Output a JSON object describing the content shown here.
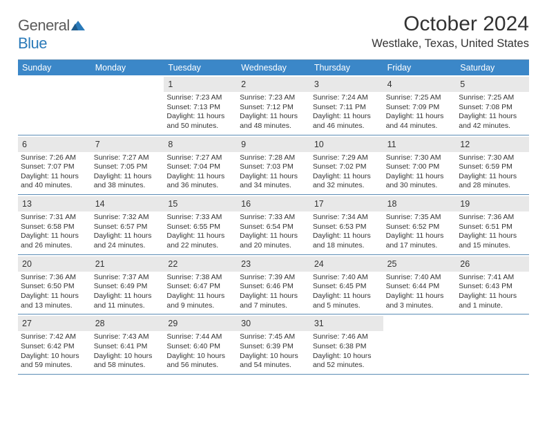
{
  "brand": {
    "name_part1": "General",
    "name_part2": "Blue"
  },
  "title": "October 2024",
  "location": "Westlake, Texas, United States",
  "colors": {
    "header_bg": "#3b87c8",
    "rule": "#5a8bb5",
    "daynum_bg": "#e8e8e8",
    "text": "#333333",
    "brand_gray": "#5a5a5a",
    "brand_blue": "#2a7ab9",
    "white": "#ffffff"
  },
  "day_names": [
    "Sunday",
    "Monday",
    "Tuesday",
    "Wednesday",
    "Thursday",
    "Friday",
    "Saturday"
  ],
  "weeks": [
    [
      null,
      null,
      {
        "d": "1",
        "sr": "7:23 AM",
        "ss": "7:13 PM",
        "dl": "11 hours and 50 minutes."
      },
      {
        "d": "2",
        "sr": "7:23 AM",
        "ss": "7:12 PM",
        "dl": "11 hours and 48 minutes."
      },
      {
        "d": "3",
        "sr": "7:24 AM",
        "ss": "7:11 PM",
        "dl": "11 hours and 46 minutes."
      },
      {
        "d": "4",
        "sr": "7:25 AM",
        "ss": "7:09 PM",
        "dl": "11 hours and 44 minutes."
      },
      {
        "d": "5",
        "sr": "7:25 AM",
        "ss": "7:08 PM",
        "dl": "11 hours and 42 minutes."
      }
    ],
    [
      {
        "d": "6",
        "sr": "7:26 AM",
        "ss": "7:07 PM",
        "dl": "11 hours and 40 minutes."
      },
      {
        "d": "7",
        "sr": "7:27 AM",
        "ss": "7:05 PM",
        "dl": "11 hours and 38 minutes."
      },
      {
        "d": "8",
        "sr": "7:27 AM",
        "ss": "7:04 PM",
        "dl": "11 hours and 36 minutes."
      },
      {
        "d": "9",
        "sr": "7:28 AM",
        "ss": "7:03 PM",
        "dl": "11 hours and 34 minutes."
      },
      {
        "d": "10",
        "sr": "7:29 AM",
        "ss": "7:02 PM",
        "dl": "11 hours and 32 minutes."
      },
      {
        "d": "11",
        "sr": "7:30 AM",
        "ss": "7:00 PM",
        "dl": "11 hours and 30 minutes."
      },
      {
        "d": "12",
        "sr": "7:30 AM",
        "ss": "6:59 PM",
        "dl": "11 hours and 28 minutes."
      }
    ],
    [
      {
        "d": "13",
        "sr": "7:31 AM",
        "ss": "6:58 PM",
        "dl": "11 hours and 26 minutes."
      },
      {
        "d": "14",
        "sr": "7:32 AM",
        "ss": "6:57 PM",
        "dl": "11 hours and 24 minutes."
      },
      {
        "d": "15",
        "sr": "7:33 AM",
        "ss": "6:55 PM",
        "dl": "11 hours and 22 minutes."
      },
      {
        "d": "16",
        "sr": "7:33 AM",
        "ss": "6:54 PM",
        "dl": "11 hours and 20 minutes."
      },
      {
        "d": "17",
        "sr": "7:34 AM",
        "ss": "6:53 PM",
        "dl": "11 hours and 18 minutes."
      },
      {
        "d": "18",
        "sr": "7:35 AM",
        "ss": "6:52 PM",
        "dl": "11 hours and 17 minutes."
      },
      {
        "d": "19",
        "sr": "7:36 AM",
        "ss": "6:51 PM",
        "dl": "11 hours and 15 minutes."
      }
    ],
    [
      {
        "d": "20",
        "sr": "7:36 AM",
        "ss": "6:50 PM",
        "dl": "11 hours and 13 minutes."
      },
      {
        "d": "21",
        "sr": "7:37 AM",
        "ss": "6:49 PM",
        "dl": "11 hours and 11 minutes."
      },
      {
        "d": "22",
        "sr": "7:38 AM",
        "ss": "6:47 PM",
        "dl": "11 hours and 9 minutes."
      },
      {
        "d": "23",
        "sr": "7:39 AM",
        "ss": "6:46 PM",
        "dl": "11 hours and 7 minutes."
      },
      {
        "d": "24",
        "sr": "7:40 AM",
        "ss": "6:45 PM",
        "dl": "11 hours and 5 minutes."
      },
      {
        "d": "25",
        "sr": "7:40 AM",
        "ss": "6:44 PM",
        "dl": "11 hours and 3 minutes."
      },
      {
        "d": "26",
        "sr": "7:41 AM",
        "ss": "6:43 PM",
        "dl": "11 hours and 1 minute."
      }
    ],
    [
      {
        "d": "27",
        "sr": "7:42 AM",
        "ss": "6:42 PM",
        "dl": "10 hours and 59 minutes."
      },
      {
        "d": "28",
        "sr": "7:43 AM",
        "ss": "6:41 PM",
        "dl": "10 hours and 58 minutes."
      },
      {
        "d": "29",
        "sr": "7:44 AM",
        "ss": "6:40 PM",
        "dl": "10 hours and 56 minutes."
      },
      {
        "d": "30",
        "sr": "7:45 AM",
        "ss": "6:39 PM",
        "dl": "10 hours and 54 minutes."
      },
      {
        "d": "31",
        "sr": "7:46 AM",
        "ss": "6:38 PM",
        "dl": "10 hours and 52 minutes."
      },
      null,
      null
    ]
  ],
  "labels": {
    "sunrise": "Sunrise:",
    "sunset": "Sunset:",
    "daylight": "Daylight:"
  }
}
